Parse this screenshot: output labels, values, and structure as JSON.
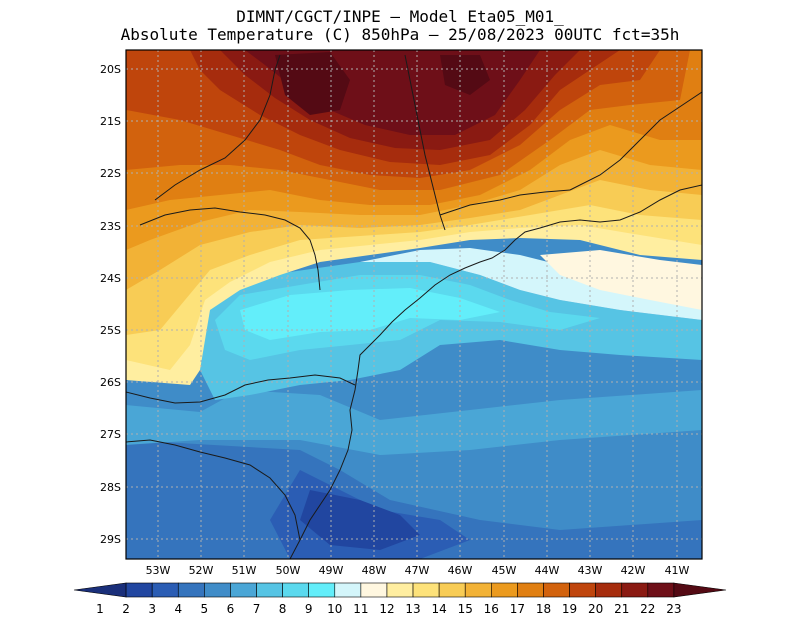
{
  "header": {
    "line1": "DIMNT/CGCT/INPE –  Model Eta05_M01_",
    "line2": "Absolute Temperature (C) 850hPa –  25/08/2023 00UTC fct=35h"
  },
  "map": {
    "lat_labels": [
      "20S",
      "21S",
      "22S",
      "23S",
      "24S",
      "25S",
      "26S",
      "27S",
      "28S",
      "29S"
    ],
    "lon_labels": [
      "53W",
      "52W",
      "51W",
      "50W",
      "49W",
      "48W",
      "47W",
      "46W",
      "45W",
      "44W",
      "43W",
      "42W",
      "41W"
    ]
  },
  "colorbar": {
    "labels": [
      "1",
      "2",
      "3",
      "4",
      "5",
      "6",
      "7",
      "8",
      "9",
      "10",
      "11",
      "12",
      "13",
      "14",
      "15",
      "16",
      "17",
      "18",
      "19",
      "20",
      "21",
      "22",
      "23"
    ],
    "colors": [
      "#1a2f7a",
      "#2146a0",
      "#2b5db4",
      "#3574bd",
      "#3f8cc8",
      "#4aa6d6",
      "#56c4e4",
      "#5bd9ee",
      "#63eefa",
      "#d4f6fb",
      "#fff7e0",
      "#ffeea0",
      "#fde27a",
      "#f8cc55",
      "#f2b236",
      "#eb9a1e",
      "#e07f12",
      "#d2620d",
      "#bf450c",
      "#a62c0d",
      "#8a1a12",
      "#6e0f18",
      "#540a14"
    ]
  }
}
